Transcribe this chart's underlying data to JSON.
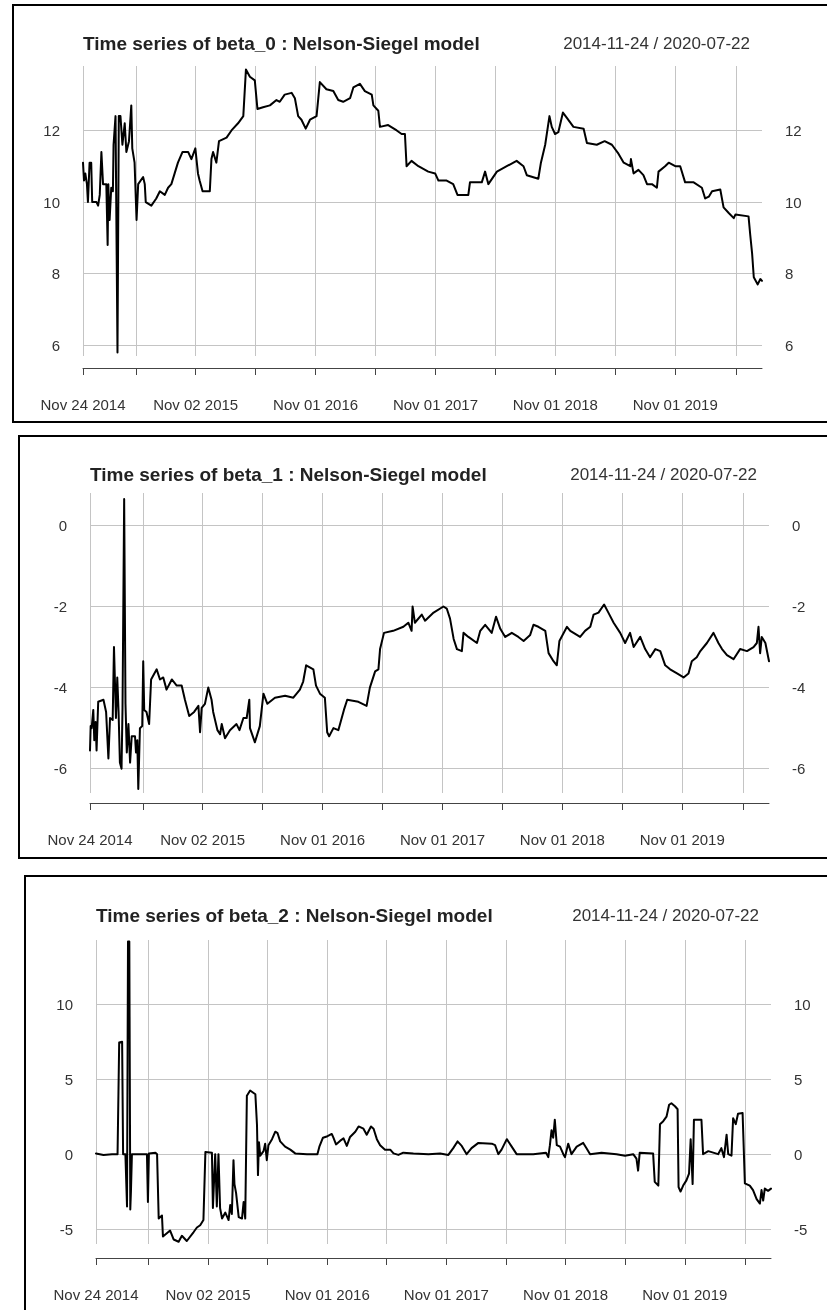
{
  "chart_data": [
    {
      "type": "line",
      "title": "Time series of beta_0 : Nelson-Siegel model",
      "subtitle": "2014-11-24 / 2020-07-22",
      "color": "#000000",
      "marker": "none",
      "line_style": "solid",
      "grid": true,
      "xlim": [
        "2014-11-24",
        "2020-07-22"
      ],
      "xticks": [
        {
          "value": "2014-11-24",
          "label": "Nov 24 2014"
        },
        {
          "value": "2015-05-04",
          "label": null
        },
        {
          "value": "2015-11-02",
          "label": "Nov 02 2015"
        },
        {
          "value": "2016-05-02",
          "label": null
        },
        {
          "value": "2016-11-01",
          "label": "Nov 01 2016"
        },
        {
          "value": "2017-05-02",
          "label": null
        },
        {
          "value": "2017-11-01",
          "label": "Nov 01 2017"
        },
        {
          "value": "2018-05-02",
          "label": null
        },
        {
          "value": "2018-11-01",
          "label": "Nov 01 2018"
        },
        {
          "value": "2019-05-02",
          "label": null
        },
        {
          "value": "2019-11-01",
          "label": "Nov 01 2019"
        },
        {
          "value": "2020-05-04",
          "label": null
        }
      ],
      "ylim": [
        5.7,
        13.8
      ],
      "yticks": [
        6,
        8,
        10,
        12
      ],
      "y2lim": [
        5.7,
        13.8
      ],
      "y2ticks": [
        6,
        8,
        10,
        12
      ],
      "x": [
        "2014-11-24",
        "2014-11-27",
        "2014-12-01",
        "2014-12-06",
        "2014-12-09",
        "2014-12-14",
        "2014-12-19",
        "2014-12-22",
        "2015-01-04",
        "2015-01-09",
        "2015-01-14",
        "2015-01-19",
        "2015-01-24",
        "2015-02-03",
        "2015-02-07",
        "2015-02-09",
        "2015-02-13",
        "2015-02-18",
        "2015-02-23",
        "2015-02-25",
        "2015-03-03",
        "2015-03-09",
        "2015-03-13",
        "2015-03-18",
        "2015-03-24",
        "2015-03-31",
        "2015-04-05",
        "2015-04-13",
        "2015-04-20",
        "2015-04-23",
        "2015-04-30",
        "2015-05-06",
        "2015-05-11",
        "2015-05-26",
        "2015-05-31",
        "2015-06-03",
        "2015-06-20",
        "2015-07-05",
        "2015-07-16",
        "2015-07-31",
        "2015-08-10",
        "2015-08-20",
        "2015-08-30",
        "2015-09-09",
        "2015-09-23",
        "2015-10-10",
        "2015-10-20",
        "2015-11-01",
        "2015-11-09",
        "2015-11-14",
        "2015-11-23",
        "2015-12-15",
        "2015-12-20",
        "2015-12-25",
        "2016-01-04",
        "2016-01-12",
        "2016-02-04",
        "2016-02-19",
        "2016-03-10",
        "2016-03-26",
        "2016-04-03",
        "2016-04-15",
        "2016-04-30",
        "2016-05-08",
        "2016-05-25",
        "2016-06-15",
        "2016-07-05",
        "2016-07-15",
        "2016-07-30",
        "2016-08-20",
        "2016-08-30",
        "2016-09-09",
        "2016-09-19",
        "2016-10-02",
        "2016-10-15",
        "2016-11-04",
        "2016-11-14",
        "2016-12-04",
        "2016-12-25",
        "2017-01-09",
        "2017-01-24",
        "2017-02-14",
        "2017-02-24",
        "2017-03-16",
        "2017-03-31",
        "2017-04-21",
        "2017-04-26",
        "2017-05-11",
        "2017-05-16",
        "2017-06-10",
        "2017-07-06",
        "2017-07-21",
        "2017-07-31",
        "2017-08-05",
        "2017-08-20",
        "2017-09-10",
        "2017-10-10",
        "2017-10-31",
        "2017-11-10",
        "2017-12-05",
        "2017-12-25",
        "2018-01-07",
        "2018-02-09",
        "2018-02-14",
        "2018-03-22",
        "2018-04-01",
        "2018-04-11",
        "2018-05-07",
        "2018-06-06",
        "2018-07-06",
        "2018-07-27",
        "2018-08-06",
        "2018-09-10",
        "2018-09-18",
        "2018-10-01",
        "2018-10-14",
        "2018-10-21",
        "2018-10-31",
        "2018-11-10",
        "2018-11-24",
        "2018-12-06",
        "2018-12-26",
        "2019-01-26",
        "2019-02-05",
        "2019-03-07",
        "2019-03-31",
        "2019-04-22",
        "2019-05-12",
        "2019-05-28",
        "2019-06-17",
        "2019-06-19",
        "2019-06-27",
        "2019-07-12",
        "2019-07-27",
        "2019-08-07",
        "2019-08-22",
        "2019-09-06",
        "2019-09-11",
        "2019-10-01",
        "2019-10-12",
        "2019-11-01",
        "2019-11-16",
        "2019-12-01",
        "2019-12-27",
        "2020-01-21",
        "2020-01-31",
        "2020-02-11",
        "2020-02-21",
        "2020-03-17",
        "2020-03-27",
        "2020-04-11",
        "2020-04-27",
        "2020-05-02",
        "2020-06-11",
        "2020-06-16",
        "2020-06-22",
        "2020-06-27",
        "2020-07-09",
        "2020-07-17",
        "2020-07-22"
      ],
      "values": [
        11.1,
        10.6,
        10.8,
        10.5,
        10.0,
        11.1,
        11.1,
        10.0,
        10.0,
        9.9,
        10.2,
        11.4,
        10.5,
        10.5,
        8.8,
        10.5,
        9.5,
        10.4,
        10.3,
        11.6,
        12.4,
        5.8,
        12.4,
        12.4,
        11.6,
        12.2,
        11.4,
        11.7,
        12.7,
        11.5,
        11.1,
        9.5,
        10.5,
        10.7,
        10.5,
        10.0,
        9.9,
        10.1,
        10.3,
        10.2,
        10.4,
        10.5,
        10.8,
        11.1,
        11.4,
        11.4,
        11.2,
        11.5,
        10.8,
        10.6,
        10.3,
        10.3,
        11.2,
        11.4,
        11.1,
        11.7,
        11.8,
        12.0,
        12.2,
        12.4,
        13.7,
        13.5,
        13.4,
        12.6,
        12.65,
        12.7,
        12.85,
        12.8,
        13.0,
        13.05,
        12.9,
        12.4,
        12.3,
        12.05,
        12.3,
        12.4,
        13.35,
        13.15,
        13.1,
        12.85,
        12.8,
        12.9,
        13.2,
        13.3,
        13.1,
        13.0,
        12.7,
        12.55,
        12.1,
        12.15,
        12.0,
        11.9,
        11.9,
        11.0,
        11.15,
        11.0,
        10.85,
        10.8,
        10.6,
        10.6,
        10.5,
        10.2,
        10.2,
        10.55,
        10.55,
        10.85,
        10.5,
        10.85,
        11.0,
        11.15,
        11.0,
        10.75,
        10.65,
        11.1,
        11.6,
        12.4,
        12.1,
        11.9,
        11.95,
        12.5,
        12.35,
        12.1,
        12.05,
        11.65,
        11.6,
        11.7,
        11.6,
        11.35,
        11.1,
        11.0,
        11.2,
        10.8,
        10.9,
        10.75,
        10.5,
        10.5,
        10.4,
        10.85,
        11.0,
        11.1,
        11.0,
        11.0,
        10.55,
        10.55,
        10.4,
        10.1,
        10.15,
        10.3,
        10.35,
        9.85,
        9.7,
        9.55,
        9.65,
        9.6,
        9.1,
        8.55,
        7.9,
        7.7,
        7.85,
        7.8
      ]
    },
    {
      "type": "line",
      "title": "Time series of beta_1 : Nelson-Siegel model",
      "subtitle": "2014-11-24 / 2020-07-22",
      "color": "#000000",
      "marker": "none",
      "line_style": "solid",
      "grid": true,
      "xlim": [
        "2014-11-24",
        "2020-07-22"
      ],
      "xticks": [
        {
          "value": "2014-11-24",
          "label": "Nov 24 2014"
        },
        {
          "value": "2015-05-04",
          "label": null
        },
        {
          "value": "2015-11-02",
          "label": "Nov 02 2015"
        },
        {
          "value": "2016-05-02",
          "label": null
        },
        {
          "value": "2016-11-01",
          "label": "Nov 01 2016"
        },
        {
          "value": "2017-05-02",
          "label": null
        },
        {
          "value": "2017-11-01",
          "label": "Nov 01 2017"
        },
        {
          "value": "2018-05-02",
          "label": null
        },
        {
          "value": "2018-11-01",
          "label": "Nov 01 2018"
        },
        {
          "value": "2019-05-02",
          "label": null
        },
        {
          "value": "2019-11-01",
          "label": "Nov 01 2019"
        },
        {
          "value": "2020-05-04",
          "label": null
        }
      ],
      "ylim": [
        -6.6,
        0.8
      ],
      "yticks": [
        -6,
        -4,
        -2,
        0
      ],
      "y2lim": [
        -6.6,
        0.8
      ],
      "y2ticks": [
        -6,
        -4,
        -2,
        0
      ],
      "x": [
        "2014-11-24",
        "2014-11-26",
        "2014-11-29",
        "2014-12-04",
        "2014-12-07",
        "2014-12-11",
        "2014-12-14",
        "2014-12-19",
        "2015-01-04",
        "2015-01-12",
        "2015-01-19",
        "2015-01-24",
        "2015-02-01",
        "2015-02-05",
        "2015-02-11",
        "2015-02-15",
        "2015-02-19",
        "2015-02-23",
        "2015-02-28",
        "2015-03-03",
        "2015-03-08",
        "2015-03-12",
        "2015-03-16",
        "2015-03-21",
        "2015-03-26",
        "2015-03-31",
        "2015-04-10",
        "2015-04-13",
        "2015-04-17",
        "2015-04-20",
        "2015-04-25",
        "2015-05-02",
        "2015-05-05",
        "2015-05-08",
        "2015-05-15",
        "2015-05-23",
        "2015-05-29",
        "2015-06-15",
        "2015-06-25",
        "2015-07-05",
        "2015-07-15",
        "2015-07-31",
        "2015-08-15",
        "2015-08-30",
        "2015-09-09",
        "2015-09-22",
        "2015-10-07",
        "2015-10-20",
        "2015-10-25",
        "2015-10-30",
        "2015-11-09",
        "2015-11-19",
        "2015-11-29",
        "2015-12-04",
        "2015-12-17",
        "2015-12-25",
        "2015-12-30",
        "2016-01-09",
        "2016-01-24",
        "2016-02-13",
        "2016-02-22",
        "2016-03-05",
        "2016-03-15",
        "2016-03-23",
        "2016-03-25",
        "2016-04-09",
        "2016-04-24",
        "2016-05-05",
        "2016-05-17",
        "2016-06-09",
        "2016-07-10",
        "2016-08-04",
        "2016-08-24",
        "2016-09-03",
        "2016-09-12",
        "2016-10-04",
        "2016-10-12",
        "2016-10-24",
        "2016-11-08",
        "2016-11-15",
        "2016-11-21",
        "2016-12-04",
        "2016-12-19",
        "2017-01-05",
        "2017-01-15",
        "2017-02-18",
        "2017-03-15",
        "2017-03-25",
        "2017-04-10",
        "2017-04-20",
        "2017-04-25",
        "2017-05-07",
        "2017-06-04",
        "2017-07-05",
        "2017-07-20",
        "2017-07-30",
        "2017-08-02",
        "2017-08-09",
        "2017-08-30",
        "2017-09-09",
        "2017-10-05",
        "2017-11-04",
        "2017-11-14",
        "2017-11-24",
        "2017-12-05",
        "2017-12-15",
        "2017-12-30",
        "2018-01-04",
        "2018-01-19",
        "2018-02-14",
        "2018-02-24",
        "2018-03-11",
        "2018-03-31",
        "2018-04-13",
        "2018-04-26",
        "2018-05-11",
        "2018-05-31",
        "2018-06-20",
        "2018-07-06",
        "2018-07-26",
        "2018-08-05",
        "2018-08-20",
        "2018-09-10",
        "2018-09-20",
        "2018-10-05",
        "2018-10-15",
        "2018-10-23",
        "2018-11-15",
        "2018-11-25",
        "2018-12-25",
        "2019-01-09",
        "2019-01-25",
        "2019-02-04",
        "2019-02-19",
        "2019-03-08",
        "2019-03-21",
        "2019-04-06",
        "2019-04-26",
        "2019-05-11",
        "2019-05-26",
        "2019-06-06",
        "2019-06-26",
        "2019-07-11",
        "2019-07-26",
        "2019-08-11",
        "2019-08-26",
        "2019-09-10",
        "2019-09-25",
        "2019-10-16",
        "2019-11-05",
        "2019-11-20",
        "2019-11-30",
        "2019-12-15",
        "2019-12-26",
        "2020-01-15",
        "2020-02-04",
        "2020-02-19",
        "2020-03-01",
        "2020-03-16",
        "2020-04-05",
        "2020-04-25",
        "2020-05-16",
        "2020-06-05",
        "2020-06-15",
        "2020-06-20",
        "2020-06-25",
        "2020-06-30",
        "2020-07-11",
        "2020-07-22"
      ],
      "values": [
        -5.55,
        -4.95,
        -5.0,
        -4.55,
        -5.3,
        -4.85,
        -5.55,
        -4.35,
        -4.3,
        -4.6,
        -5.75,
        -4.75,
        -4.8,
        -3.0,
        -4.75,
        -3.75,
        -4.6,
        -5.85,
        -6.0,
        -4.5,
        0.65,
        -4.4,
        -5.6,
        -4.9,
        -5.85,
        -5.2,
        -5.2,
        -5.6,
        -5.3,
        -6.5,
        -5.0,
        -4.95,
        -3.35,
        -4.55,
        -4.6,
        -4.9,
        -3.8,
        -3.55,
        -3.8,
        -3.75,
        -4.05,
        -3.8,
        -3.95,
        -3.95,
        -4.3,
        -4.7,
        -4.6,
        -4.45,
        -5.1,
        -4.5,
        -4.4,
        -4.0,
        -4.3,
        -4.6,
        -5.05,
        -5.15,
        -4.9,
        -5.25,
        -5.05,
        -4.9,
        -5.05,
        -4.75,
        -4.75,
        -4.3,
        -5.0,
        -5.35,
        -4.95,
        -4.15,
        -4.4,
        -4.25,
        -4.2,
        -4.25,
        -4.05,
        -3.85,
        -3.45,
        -3.55,
        -3.95,
        -4.15,
        -4.25,
        -5.1,
        -5.2,
        -5.0,
        -5.05,
        -4.55,
        -4.3,
        -4.35,
        -4.45,
        -4.0,
        -3.6,
        -3.55,
        -3.05,
        -2.65,
        -2.6,
        -2.5,
        -2.4,
        -2.6,
        -2.0,
        -2.4,
        -2.2,
        -2.35,
        -2.15,
        -2.0,
        -2.05,
        -2.3,
        -2.8,
        -3.05,
        -3.1,
        -2.65,
        -2.75,
        -2.9,
        -2.6,
        -2.45,
        -2.65,
        -2.25,
        -2.55,
        -2.75,
        -2.65,
        -2.75,
        -2.85,
        -2.7,
        -2.45,
        -2.5,
        -2.6,
        -3.15,
        -3.35,
        -3.45,
        -2.85,
        -2.5,
        -2.6,
        -2.75,
        -2.6,
        -2.5,
        -2.2,
        -2.15,
        -1.95,
        -2.15,
        -2.4,
        -2.65,
        -2.9,
        -2.65,
        -3.0,
        -2.75,
        -3.05,
        -3.25,
        -3.05,
        -3.1,
        -3.45,
        -3.55,
        -3.65,
        -3.75,
        -3.65,
        -3.35,
        -3.25,
        -3.1,
        -2.9,
        -2.65,
        -2.9,
        -3.05,
        -3.2,
        -3.3,
        -3.05,
        -3.1,
        -3.0,
        -2.9,
        -2.5,
        -3.15,
        -2.75,
        -2.9,
        -3.35
      ]
    },
    {
      "type": "line",
      "title": "Time series of beta_2 : Nelson-Siegel model",
      "subtitle": "2014-11-24 / 2020-07-22",
      "color": "#000000",
      "marker": "none",
      "line_style": "solid",
      "grid": true,
      "xlim": [
        "2014-11-24",
        "2020-07-22"
      ],
      "xticks": [
        {
          "value": "2014-11-24",
          "label": "Nov 24 2014"
        },
        {
          "value": "2015-05-04",
          "label": null
        },
        {
          "value": "2015-11-02",
          "label": "Nov 02 2015"
        },
        {
          "value": "2016-05-02",
          "label": null
        },
        {
          "value": "2016-11-01",
          "label": "Nov 01 2016"
        },
        {
          "value": "2017-05-02",
          "label": null
        },
        {
          "value": "2017-11-01",
          "label": "Nov 01 2017"
        },
        {
          "value": "2018-05-02",
          "label": null
        },
        {
          "value": "2018-11-01",
          "label": "Nov 01 2018"
        },
        {
          "value": "2019-05-02",
          "label": null
        },
        {
          "value": "2019-11-01",
          "label": "Nov 01 2019"
        },
        {
          "value": "2020-05-04",
          "label": null
        }
      ],
      "ylim": [
        -6,
        14.3
      ],
      "yticks": [
        -5,
        0,
        5,
        10
      ],
      "y2lim": [
        -6,
        14.3
      ],
      "y2ticks": [
        -5,
        0,
        5,
        10
      ],
      "x": [
        "2014-11-24",
        "2014-12-17",
        "2015-01-12",
        "2015-01-29",
        "2015-02-03",
        "2015-02-12",
        "2015-02-15",
        "2015-02-22",
        "2015-02-27",
        "2015-03-02",
        "2015-03-06",
        "2015-03-09",
        "2015-03-11",
        "2015-03-14",
        "2015-04-29",
        "2015-05-02",
        "2015-05-05",
        "2015-05-25",
        "2015-05-30",
        "2015-06-04",
        "2015-06-14",
        "2015-06-17",
        "2015-07-09",
        "2015-07-20",
        "2015-08-04",
        "2015-08-14",
        "2015-08-29",
        "2015-09-19",
        "2015-09-29",
        "2015-10-09",
        "2015-10-19",
        "2015-10-25",
        "2015-11-14",
        "2015-11-17",
        "2015-11-24",
        "2015-11-29",
        "2015-12-04",
        "2015-12-09",
        "2015-12-15",
        "2015-12-25",
        "2016-01-04",
        "2016-01-09",
        "2016-01-14",
        "2016-01-19",
        "2016-01-22",
        "2016-01-27",
        "2016-02-04",
        "2016-02-14",
        "2016-02-19",
        "2016-02-24",
        "2016-02-29",
        "2016-03-10",
        "2016-03-26",
        "2016-03-31",
        "2016-04-03",
        "2016-04-06",
        "2016-04-10",
        "2016-04-20",
        "2016-04-25",
        "2016-04-30",
        "2016-05-05",
        "2016-05-16",
        "2016-05-26",
        "2016-06-02",
        "2016-06-10",
        "2016-06-25",
        "2016-07-11",
        "2016-07-26",
        "2016-08-31",
        "2016-10-02",
        "2016-10-08",
        "2016-10-19",
        "2016-11-02",
        "2016-11-15",
        "2016-11-20",
        "2016-11-28",
        "2016-12-11",
        "2016-12-21",
        "2016-12-31",
        "2017-01-10",
        "2017-01-26",
        "2017-02-05",
        "2017-02-20",
        "2017-03-02",
        "2017-03-15",
        "2017-03-23",
        "2017-04-02",
        "2017-04-12",
        "2017-04-27",
        "2017-05-13",
        "2017-05-23",
        "2017-06-07",
        "2017-06-22",
        "2017-07-23",
        "2017-09-07",
        "2017-10-13",
        "2017-11-07",
        "2017-11-22",
        "2017-12-05",
        "2017-12-18",
        "2018-01-02",
        "2018-01-17",
        "2018-02-07",
        "2018-03-20",
        "2018-03-30",
        "2018-04-09",
        "2018-04-19",
        "2018-05-05",
        "2018-05-20",
        "2018-06-04",
        "2018-07-25",
        "2018-09-02",
        "2018-09-09",
        "2018-09-14",
        "2018-09-19",
        "2018-09-24",
        "2018-09-29",
        "2018-10-05",
        "2018-10-15",
        "2018-10-25",
        "2018-10-30",
        "2018-11-09",
        "2018-11-19",
        "2018-12-05",
        "2018-12-25",
        "2019-01-04",
        "2019-01-15",
        "2019-02-19",
        "2019-04-06",
        "2019-05-02",
        "2019-05-27",
        "2019-06-06",
        "2019-06-11",
        "2019-06-16",
        "2019-07-27",
        "2019-08-01",
        "2019-08-12",
        "2019-08-17",
        "2019-08-27",
        "2019-09-06",
        "2019-09-14",
        "2019-09-21",
        "2019-10-02",
        "2019-10-10",
        "2019-10-13",
        "2019-10-19",
        "2019-10-27",
        "2019-11-06",
        "2019-11-14",
        "2019-11-19",
        "2019-11-25",
        "2019-11-29",
        "2019-12-22",
        "2019-12-27",
        "2020-01-12",
        "2020-02-11",
        "2020-02-21",
        "2020-02-29",
        "2020-03-08",
        "2020-03-13",
        "2020-03-23",
        "2020-03-28",
        "2020-04-05",
        "2020-04-12",
        "2020-04-26",
        "2020-05-03",
        "2020-05-18",
        "2020-05-28",
        "2020-06-08",
        "2020-06-18",
        "2020-06-23",
        "2020-06-28",
        "2020-07-03",
        "2020-07-13",
        "2020-07-22"
      ],
      "values": [
        0.05,
        -0.05,
        0.0,
        0.0,
        7.45,
        7.5,
        0.0,
        0.0,
        -3.5,
        14.2,
        14.2,
        -3.7,
        -2.5,
        0.0,
        0.0,
        -3.2,
        0.05,
        0.1,
        0.0,
        -4.3,
        -4.1,
        -5.5,
        -5.1,
        -5.7,
        -5.85,
        -5.45,
        -5.8,
        -5.2,
        -4.9,
        -4.75,
        -4.4,
        0.15,
        0.1,
        -3.6,
        0.0,
        -3.5,
        0.0,
        -3.6,
        -4.3,
        -3.9,
        -4.4,
        -3.4,
        -4.0,
        -0.4,
        -2.0,
        -2.6,
        -4.2,
        -4.3,
        -3.2,
        -4.3,
        3.9,
        4.25,
        4.0,
        1.95,
        -1.4,
        0.8,
        -0.1,
        0.2,
        0.7,
        -0.4,
        0.6,
        1.0,
        1.5,
        1.4,
        0.85,
        0.5,
        0.3,
        0.05,
        0.0,
        0.0,
        0.5,
        1.1,
        1.2,
        1.35,
        1.1,
        0.65,
        0.9,
        1.05,
        0.55,
        1.15,
        1.5,
        1.85,
        1.7,
        1.3,
        1.85,
        1.7,
        1.0,
        0.6,
        0.3,
        0.3,
        0.05,
        -0.05,
        0.1,
        0.05,
        0.0,
        0.05,
        -0.05,
        0.4,
        0.85,
        0.55,
        0.0,
        0.4,
        0.75,
        0.7,
        0.6,
        0.0,
        0.3,
        1.0,
        0.5,
        0.0,
        0.0,
        0.1,
        -0.2,
        0.6,
        1.6,
        1.1,
        2.3,
        0.6,
        0.5,
        0.0,
        -0.2,
        0.7,
        0.0,
        0.5,
        0.75,
        0.4,
        0.0,
        0.1,
        0.0,
        -0.1,
        0.0,
        -0.3,
        -1.1,
        0.1,
        0.05,
        -1.85,
        -2.1,
        2.0,
        2.2,
        2.5,
        3.3,
        3.4,
        3.2,
        3.0,
        -2.2,
        -2.5,
        -2.1,
        -1.75,
        -1.3,
        1.0,
        -2.0,
        2.3,
        2.3,
        0.0,
        0.2,
        0.0,
        0.4,
        -0.2,
        1.3,
        0.0,
        -0.1,
        2.4,
        2.0,
        2.7,
        2.75,
        -1.95,
        -2.1,
        -2.4,
        -3.0,
        -3.3,
        -2.4,
        -3.1,
        -2.3,
        -2.45,
        -2.3
      ]
    }
  ]
}
